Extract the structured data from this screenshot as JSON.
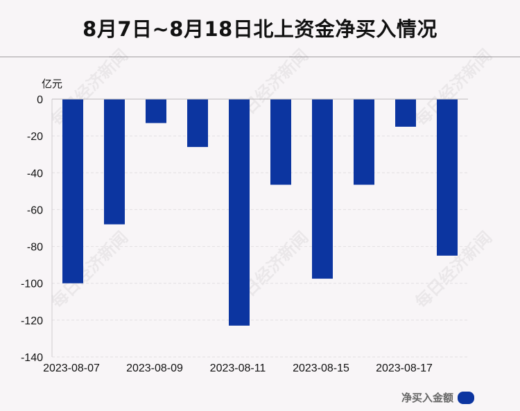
{
  "title": "8月7日~8月18日北上资金净买入情况",
  "watermark_text": "每日经济新闻",
  "chart_data": {
    "type": "bar",
    "ylabel": "亿元",
    "ylim": [
      -140,
      0
    ],
    "yticks": [
      0,
      -20,
      -40,
      -60,
      -80,
      -100,
      -120,
      -140
    ],
    "x_tick_labels": [
      "2023-08-07",
      "2023-08-09",
      "2023-08-11",
      "2023-08-15",
      "2023-08-17"
    ],
    "series": [
      {
        "name": "净买入金额",
        "color": "#0c35a0",
        "values": [
          -100,
          -68,
          -13,
          -26,
          -123,
          -46.5,
          -97.5,
          -46.5,
          -15,
          -85
        ]
      }
    ],
    "legend_position": "bottom-right",
    "grid": true
  }
}
